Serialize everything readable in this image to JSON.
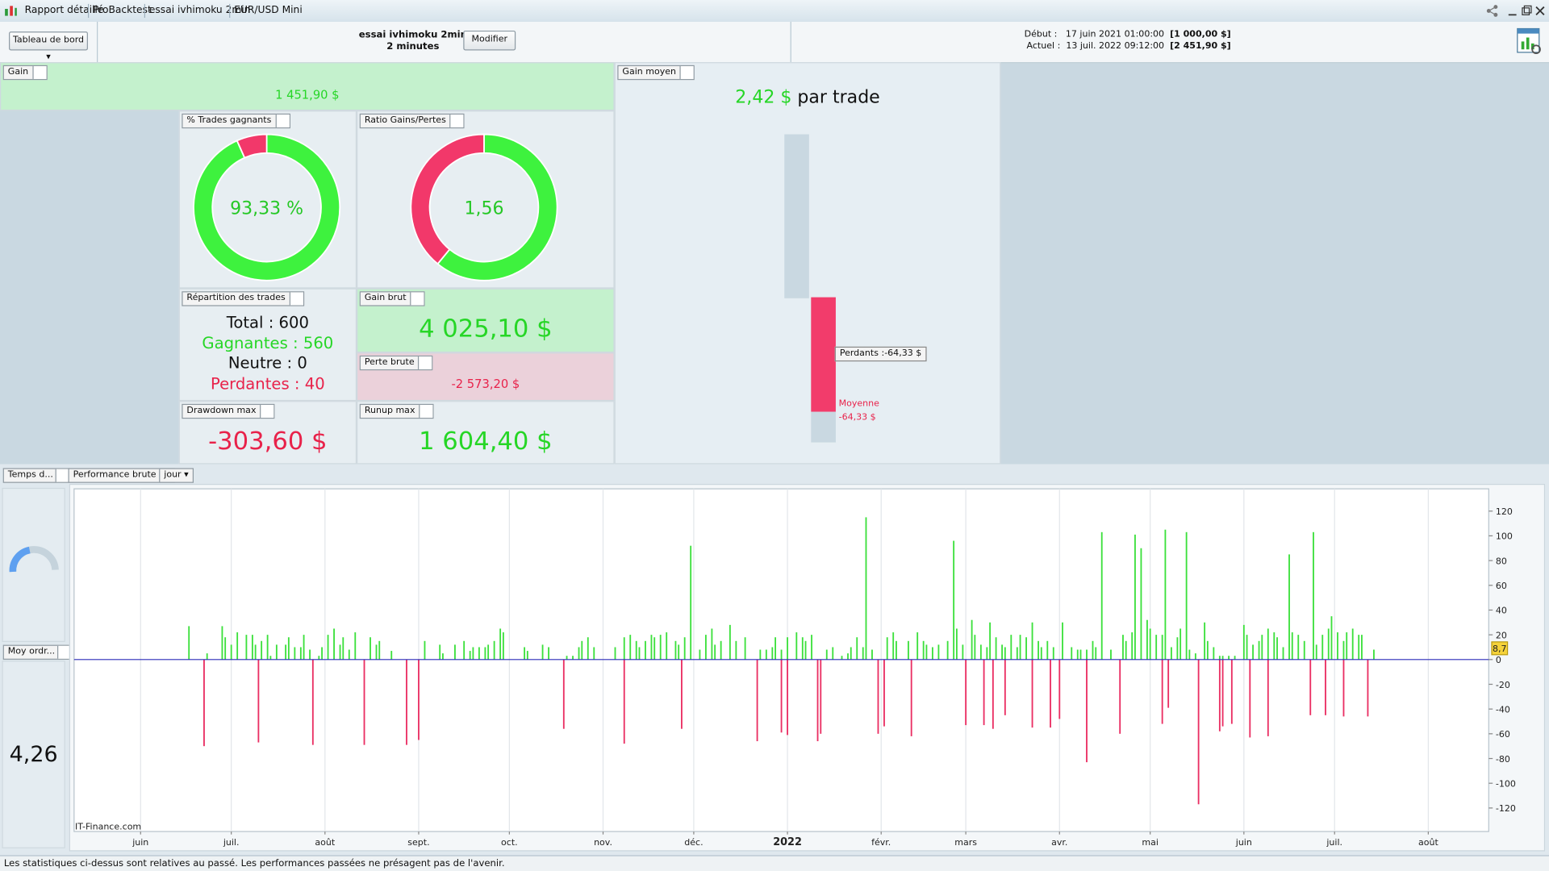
{
  "title_bar": {
    "tabs": [
      "Rapport détaillé",
      "ProBacktest",
      "essai ivhimoku 2min",
      "EUR/USD Mini"
    ]
  },
  "toolbar": {
    "dropdown": "Tableau de bord",
    "strategy": "essai ivhimoku 2min",
    "timeframe": "2 minutes",
    "button": "Modifier",
    "start_label": "Début :",
    "start_date": "17 juin 2021 01:00:00",
    "start_capital": "[1 000,00 $]",
    "current_label": "Actuel :",
    "current_date": "13 juil. 2022 09:12:00",
    "current_capital": "[2 451,90 $]"
  },
  "gain": {
    "tag": "Gain",
    "value": "1 451,90 $"
  },
  "win_rate": {
    "tag": "% Trades gagnants",
    "value": 93.33,
    "label": "93,33 %"
  },
  "ratio": {
    "tag": "Ratio Gains/Pertes",
    "value": 1.56,
    "label": "1,56"
  },
  "repartition": {
    "tag": "Répartition des trades",
    "rows": [
      {
        "label": "Total : ",
        "value": 600
      },
      {
        "label": "Gagnantes : ",
        "value": 560
      },
      {
        "label": "Neutre : ",
        "value": 0
      },
      {
        "label": "Perdantes : ",
        "value": 40
      }
    ]
  },
  "gross_gain": {
    "tag": "Gain brut",
    "value": "4 025,10 $"
  },
  "gross_loss": {
    "tag": "Perte brute",
    "value": "-2 573,20 $"
  },
  "drawdown": {
    "tag": "Drawdown max",
    "value": "-303,60 $"
  },
  "runup": {
    "tag": "Runup max",
    "value": "1 604,40 $"
  },
  "avg_gain": {
    "tag": "Gain moyen",
    "value": "2,42 $",
    "suffix": " par trade",
    "losers_tooltip": "Perdants :-64,33 $",
    "average_label": "Moyenne",
    "average_value": "-64,33 $"
  },
  "time_gauge": {
    "tag": "Temps d..."
  },
  "avg_orders": {
    "tag": "Moy ordr...",
    "value": "4,26"
  },
  "chart_data": {
    "type": "bar",
    "title": "Performance brute",
    "period": "jour",
    "watermark": "IT-Finance.com",
    "x": [
      16,
      21,
      22,
      27,
      28,
      30,
      32,
      35,
      37,
      38,
      39,
      40,
      42,
      43,
      45,
      48,
      49,
      51,
      53,
      54,
      56,
      57,
      59,
      60,
      62,
      64,
      66,
      67,
      69,
      71,
      74,
      76,
      78,
      79,
      83,
      88,
      92,
      94,
      99,
      100,
      104,
      107,
      109,
      110,
      112,
      114,
      115,
      117,
      119,
      120,
      127,
      128,
      133,
      135,
      140,
      141,
      143,
      145,
      146,
      148,
      150,
      157,
      160,
      160,
      162,
      164,
      165,
      167,
      169,
      170,
      172,
      174,
      177,
      178,
      179,
      180,
      182,
      185,
      187,
      189,
      190,
      192,
      195,
      197,
      200,
      204,
      205,
      207,
      209,
      210,
      212,
      212,
      214,
      214,
      217,
      219,
      220,
      222,
      224,
      225,
      227,
      229,
      232,
      234,
      235,
      237,
      239,
      240,
      242,
      244,
      246,
      247,
      249,
      250,
      254,
      255,
      257,
      259,
      260,
      262,
      264,
      267,
      269,
      270,
      272,
      273,
      275,
      276,
      278,
      279,
      280,
      281,
      282,
      283,
      285,
      286,
      286,
      288,
      290,
      291,
      293,
      295,
      295,
      297,
      298,
      300,
      301,
      302,
      304,
      305,
      308,
      310,
      311,
      313,
      313,
      315,
      316,
      318,
      321,
      324,
      325,
      326,
      328,
      329,
      331,
      333,
      334,
      336,
      338,
      338,
      339,
      340,
      341,
      343,
      344,
      346,
      347,
      349,
      350,
      352,
      353,
      355,
      357,
      357,
      358,
      358,
      360,
      361,
      362,
      365,
      366,
      367,
      368,
      370,
      371,
      373,
      373,
      375,
      376,
      378,
      380,
      381,
      383,
      385,
      387,
      388,
      389,
      391,
      392,
      393,
      394,
      396,
      398,
      398,
      399,
      401,
      403,
      404,
      406,
      408
    ],
    "values": [
      27,
      -70,
      5,
      27,
      18,
      12,
      22,
      20,
      20,
      12,
      -67,
      15,
      20,
      3,
      12,
      12,
      18,
      10,
      10,
      20,
      8,
      -69,
      3,
      10,
      20,
      25,
      12,
      18,
      8,
      22,
      -69,
      18,
      12,
      15,
      7,
      -69,
      -65,
      15,
      12,
      5,
      12,
      15,
      7,
      10,
      10,
      10,
      12,
      15,
      25,
      22,
      10,
      7,
      12,
      10,
      -56,
      3,
      3,
      10,
      15,
      18,
      10,
      10,
      18,
      -68,
      20,
      15,
      10,
      15,
      20,
      18,
      20,
      22,
      15,
      12,
      -56,
      18,
      92,
      8,
      20,
      25,
      12,
      15,
      28,
      15,
      18,
      -66,
      8,
      8,
      10,
      18,
      8,
      -59,
      18,
      -61,
      22,
      18,
      15,
      20,
      -66,
      -60,
      8,
      10,
      3,
      5,
      10,
      18,
      10,
      115,
      8,
      -60,
      -54,
      18,
      22,
      15,
      15,
      -62,
      22,
      15,
      12,
      10,
      12,
      15,
      96,
      25,
      12,
      -53,
      32,
      20,
      12,
      -53,
      10,
      30,
      -56,
      18,
      12,
      10,
      -45,
      20,
      10,
      20,
      18,
      -55,
      30,
      15,
      10,
      15,
      -55,
      10,
      -48,
      30,
      10,
      8,
      8,
      8,
      -83,
      15,
      10,
      103,
      8,
      -60,
      20,
      15,
      22,
      101,
      90,
      32,
      25,
      20,
      20,
      -52,
      105,
      -39,
      10,
      18,
      25,
      103,
      8,
      5,
      -117,
      30,
      15,
      10,
      3,
      -58,
      3,
      -54,
      3,
      -52,
      3,
      28,
      20,
      -63,
      12,
      15,
      20,
      -62,
      25,
      22,
      18,
      10,
      85,
      22,
      20,
      15,
      -45,
      103,
      12,
      20,
      -45,
      25,
      35,
      22,
      15,
      -46,
      22,
      25,
      20,
      20,
      -46,
      8
    ],
    "xlim": [
      -22,
      446
    ],
    "xticks": [
      {
        "value": 0,
        "label": "juin"
      },
      {
        "value": 30,
        "label": "juil."
      },
      {
        "value": 61,
        "label": "août"
      },
      {
        "value": 92,
        "label": "sept."
      },
      {
        "value": 122,
        "label": "oct."
      },
      {
        "value": 153,
        "label": "nov."
      },
      {
        "value": 183,
        "label": "déc."
      },
      {
        "value": 214,
        "label": "2022",
        "bold": true
      },
      {
        "value": 245,
        "label": "févr."
      },
      {
        "value": 273,
        "label": "mars"
      },
      {
        "value": 304,
        "label": "avr."
      },
      {
        "value": 334,
        "label": "mai"
      },
      {
        "value": 365,
        "label": "juin"
      },
      {
        "value": 395,
        "label": "juil."
      },
      {
        "value": 426,
        "label": "août"
      }
    ],
    "ylim": [
      -139,
      138
    ],
    "yticks": [
      -120,
      -100,
      -80,
      -60,
      -40,
      -20,
      0,
      20,
      40,
      60,
      80,
      100,
      120
    ],
    "grid": "x",
    "colors": {
      "positive": "#3ce03c",
      "negative": "#ea2f63",
      "zero_line": "#2b2bb8"
    },
    "last_value": {
      "value": 8.7,
      "label": "8,7"
    }
  },
  "status_bar": "Les statistiques ci-dessus sont relatives au passé. Les performances passées ne présagent pas de l'avenir."
}
